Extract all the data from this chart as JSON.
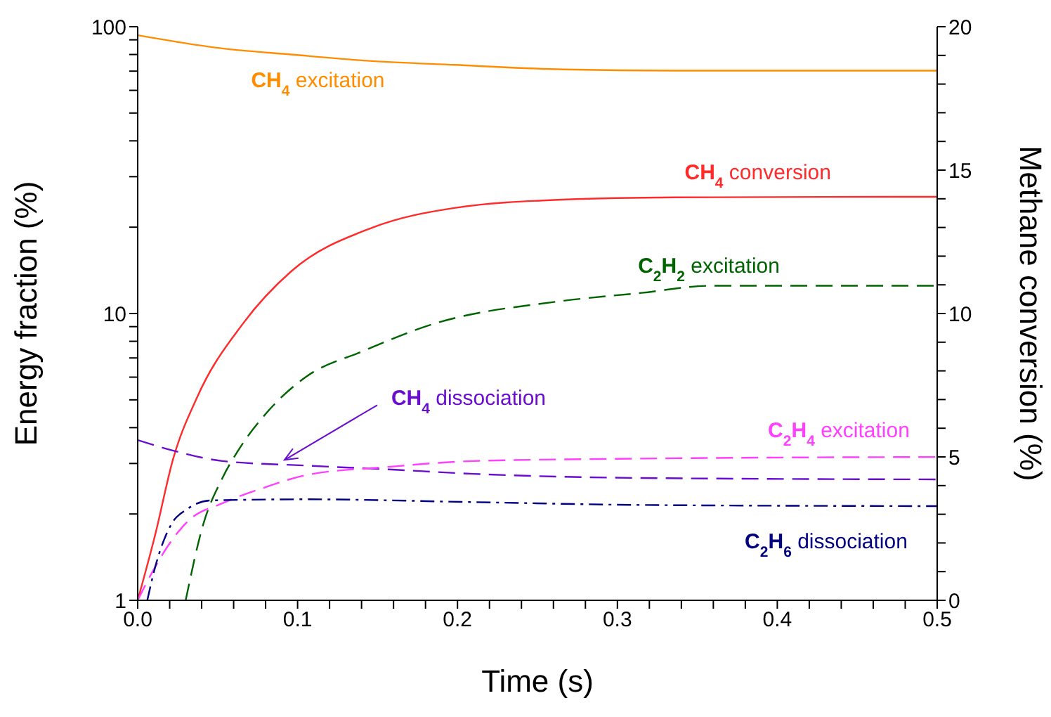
{
  "chart_data": {
    "type": "line",
    "xlabel": "Time (s)",
    "ylabel": "Energy fraction (%)",
    "y2label": "Methane conversion (%)",
    "xlim": [
      0,
      0.5
    ],
    "xticks": [
      {
        "value": 0,
        "label": "0.0"
      },
      {
        "value": 0.02,
        "label": null
      },
      {
        "value": 0.04,
        "label": null
      },
      {
        "value": 0.06,
        "label": null
      },
      {
        "value": 0.08,
        "label": null
      },
      {
        "value": 0.1,
        "label": "0.1"
      },
      {
        "value": 0.12,
        "label": null
      },
      {
        "value": 0.14,
        "label": null
      },
      {
        "value": 0.16,
        "label": null
      },
      {
        "value": 0.18,
        "label": null
      },
      {
        "value": 0.2,
        "label": "0.2"
      },
      {
        "value": 0.22,
        "label": null
      },
      {
        "value": 0.24,
        "label": null
      },
      {
        "value": 0.26,
        "label": null
      },
      {
        "value": 0.28,
        "label": null
      },
      {
        "value": 0.3,
        "label": "0.3"
      },
      {
        "value": 0.32,
        "label": null
      },
      {
        "value": 0.34,
        "label": null
      },
      {
        "value": 0.36,
        "label": null
      },
      {
        "value": 0.38,
        "label": null
      },
      {
        "value": 0.4,
        "label": "0.4"
      },
      {
        "value": 0.42,
        "label": null
      },
      {
        "value": 0.44,
        "label": null
      },
      {
        "value": 0.46,
        "label": null
      },
      {
        "value": 0.48,
        "label": null
      },
      {
        "value": 0.5,
        "label": "0.5"
      }
    ],
    "ylim": [
      1,
      100
    ],
    "log": "y",
    "yticks": [
      1,
      {
        "value": 2,
        "label": null
      },
      {
        "value": 3,
        "label": null
      },
      {
        "value": 4,
        "label": null
      },
      {
        "value": 5,
        "label": null
      },
      {
        "value": 6,
        "label": null
      },
      {
        "value": 7,
        "label": null
      },
      {
        "value": 8,
        "label": null
      },
      {
        "value": 9,
        "label": null
      },
      10,
      {
        "value": 20,
        "label": null
      },
      {
        "value": 30,
        "label": null
      },
      {
        "value": 40,
        "label": null
      },
      {
        "value": 50,
        "label": null
      },
      {
        "value": 60,
        "label": null
      },
      {
        "value": 70,
        "label": null
      },
      {
        "value": 80,
        "label": null
      },
      {
        "value": 90,
        "label": null
      },
      100
    ],
    "y2lim": [
      0,
      20
    ],
    "y2ticks": [
      0,
      {
        "value": 1,
        "label": null
      },
      {
        "value": 2,
        "label": null
      },
      {
        "value": 3,
        "label": null
      },
      {
        "value": 4,
        "label": null
      },
      5,
      {
        "value": 6,
        "label": null
      },
      {
        "value": 7,
        "label": null
      },
      {
        "value": 8,
        "label": null
      },
      {
        "value": 9,
        "label": null
      },
      10,
      {
        "value": 11,
        "label": null
      },
      {
        "value": 12,
        "label": null
      },
      {
        "value": 13,
        "label": null
      },
      {
        "value": 14,
        "label": null
      },
      15,
      {
        "value": 16,
        "label": null
      },
      {
        "value": 17,
        "label": null
      },
      {
        "value": 18,
        "label": null
      },
      {
        "value": 19,
        "label": null
      },
      20
    ],
    "marker": "none",
    "series": [
      {
        "name": "CH$_{4}$ excitation",
        "color": "#ff8c00",
        "line_style": "solid",
        "x": [
          0,
          0.053,
          0.096,
          0.145,
          0.198,
          0.266,
          0.336,
          0.5
        ],
        "values": [
          93.4,
          84,
          80,
          76,
          73.6,
          71,
          70.3,
          70.3
        ]
      },
      {
        "name": "CH$_{4}$ conversion",
        "color": "#ff2a2a",
        "line_style": "solid",
        "axis": "y2",
        "x": [
          0,
          0.011,
          0.022,
          0.037,
          0.066,
          0.096,
          0.147,
          0.198,
          0.266,
          0.336,
          0.5
        ],
        "values": [
          0,
          2.3,
          4.9,
          7.06,
          9.66,
          11.47,
          13.0,
          13.68,
          13.97,
          14.05,
          14.07
        ]
      },
      {
        "name": "C$_{2}$H$_{2}$ excitation",
        "color": "#006400",
        "line_style": "dashed",
        "x": [
          0.03,
          0.041,
          0.053,
          0.063,
          0.081,
          0.105,
          0.14,
          0.185,
          0.262,
          0.315,
          0.359,
          0.5
        ],
        "values": [
          1.0,
          1.84,
          2.67,
          3.34,
          4.53,
          6.0,
          7.36,
          9.2,
          11.0,
          11.8,
          12.5,
          12.5
        ]
      },
      {
        "name": "CH$_{4}$ dissociation",
        "color": "#6a0dd0",
        "line_style": "dashed",
        "x": [
          0,
          0.021,
          0.053,
          0.105,
          0.157,
          0.21,
          0.315,
          0.5
        ],
        "values": [
          3.62,
          3.34,
          3.06,
          2.95,
          2.86,
          2.76,
          2.67,
          2.64
        ]
      },
      {
        "name": "C$_{2}$H$_{4}$ excitation",
        "color": "#ff40ff",
        "line_style": "dashed",
        "x": [
          0,
          0.011,
          0.021,
          0.032,
          0.053,
          0.079,
          0.105,
          0.157,
          0.21,
          0.315,
          0.5
        ],
        "values": [
          1,
          1.31,
          1.61,
          1.9,
          2.18,
          2.47,
          2.73,
          2.92,
          3.06,
          3.12,
          3.16
        ]
      },
      {
        "name": "C$_{2}$H$_{6}$ dissociation",
        "color": "#000080",
        "line_style": "dashdot",
        "x": [
          0.006,
          0.011,
          0.021,
          0.031,
          0.046,
          0.105,
          0.21,
          0.315,
          0.5
        ],
        "values": [
          1,
          1.31,
          1.84,
          2.08,
          2.23,
          2.25,
          2.2,
          2.15,
          2.13
        ]
      }
    ]
  }
}
